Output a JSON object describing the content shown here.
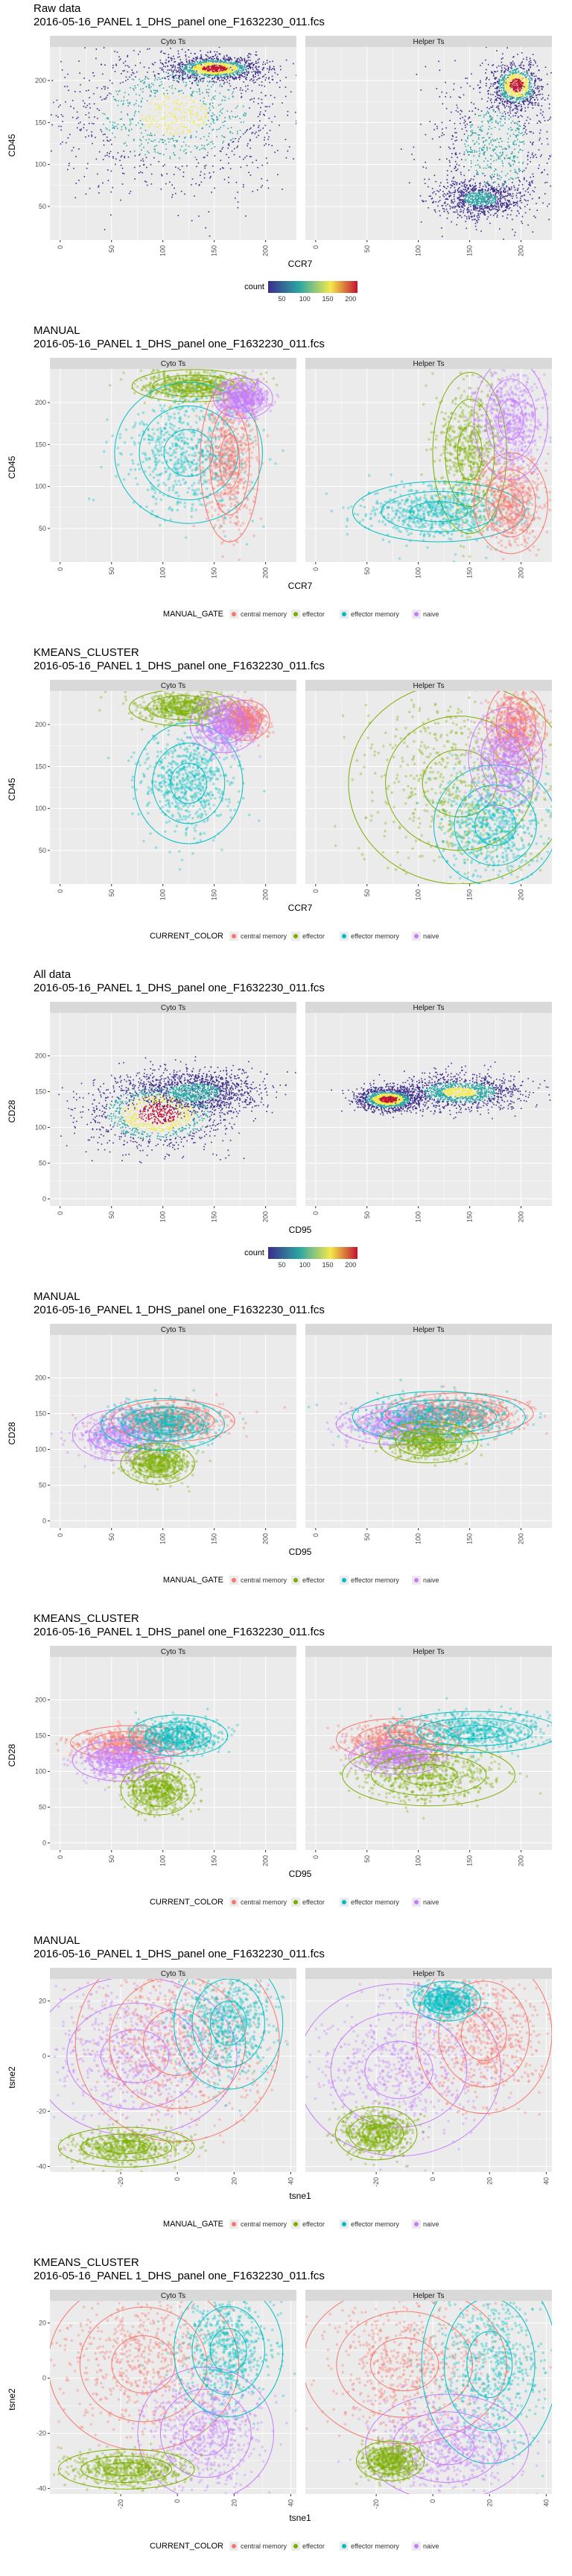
{
  "colors": {
    "central memory": "#F8766D",
    "effector": "#7CAE00",
    "effector memory": "#00BFC4",
    "naive": "#C77CFF",
    "panel_bg": "#EBEBEB",
    "strip_bg": "#D9D9D9",
    "grid": "#FFFFFF",
    "density_low": "#3B2E8C",
    "density_mid": "#2CA6A4",
    "density_hi": "#F4E94B",
    "density_top": "#C4122F"
  },
  "chart_data": [
    {
      "type": "scatter",
      "title": "Raw data",
      "subtitle": "2016-05-16_PANEL 1_DHS_panel one_F1632230_011.fcs",
      "facets": [
        "Cyto Ts",
        "Helper Ts"
      ],
      "xlabel": "CCR7",
      "ylabel": "CD45",
      "xticks": [
        0,
        50,
        100,
        150,
        200
      ],
      "yticks": [
        50,
        100,
        150,
        200
      ],
      "xlim": [
        -10,
        230
      ],
      "ylim": [
        10,
        240
      ],
      "grid": true,
      "legend": {
        "title": "count",
        "kind": "colorbar",
        "ticks": [
          50,
          100,
          150,
          200
        ],
        "position": "bottom"
      },
      "hotspots": [
        [
          {
            "x": 150,
            "y": 215,
            "sx": 22,
            "sy": 7,
            "w": 1.0
          },
          {
            "x": 110,
            "y": 160,
            "sx": 60,
            "sy": 45,
            "w": 0.7
          }
        ],
        [
          {
            "x": 195,
            "y": 195,
            "sx": 12,
            "sy": 14,
            "w": 1.0
          },
          {
            "x": 160,
            "y": 60,
            "sx": 20,
            "sy": 10,
            "w": 0.5
          },
          {
            "x": 175,
            "y": 120,
            "sx": 30,
            "sy": 45,
            "w": 0.6
          }
        ]
      ]
    },
    {
      "type": "scatter",
      "title": "MANUAL",
      "subtitle": "2016-05-16_PANEL 1_DHS_panel one_F1632230_011.fcs",
      "facets": [
        "Cyto Ts",
        "Helper Ts"
      ],
      "xlabel": "CCR7",
      "ylabel": "CD45",
      "xticks": [
        0,
        50,
        100,
        150,
        200
      ],
      "yticks": [
        50,
        100,
        150,
        200
      ],
      "xlim": [
        -10,
        230
      ],
      "ylim": [
        10,
        240
      ],
      "grid": true,
      "legend": {
        "title": "MANUAL_GATE",
        "kind": "categorical",
        "items": [
          "central memory",
          "effector",
          "effector memory",
          "naive"
        ],
        "position": "bottom"
      },
      "clusters": [
        [
          {
            "cls": "effector",
            "x": 130,
            "y": 220,
            "sx": 25,
            "sy": 8
          },
          {
            "cls": "effector memory",
            "x": 125,
            "y": 140,
            "sx": 30,
            "sy": 35
          },
          {
            "cls": "central memory",
            "x": 165,
            "y": 130,
            "sx": 12,
            "sy": 40
          },
          {
            "cls": "naive",
            "x": 178,
            "y": 205,
            "sx": 12,
            "sy": 10
          }
        ],
        [
          {
            "cls": "effector",
            "x": 150,
            "y": 140,
            "sx": 15,
            "sy": 40
          },
          {
            "cls": "effector memory",
            "x": 120,
            "y": 70,
            "sx": 35,
            "sy": 15
          },
          {
            "cls": "central memory",
            "x": 190,
            "y": 80,
            "sx": 15,
            "sy": 25
          },
          {
            "cls": "naive",
            "x": 190,
            "y": 180,
            "sx": 15,
            "sy": 30
          }
        ]
      ]
    },
    {
      "type": "scatter",
      "title": "KMEANS_CLUSTER",
      "subtitle": "2016-05-16_PANEL 1_DHS_panel one_F1632230_011.fcs",
      "facets": [
        "Cyto Ts",
        "Helper Ts"
      ],
      "xlabel": "CCR7",
      "ylabel": "CD45",
      "xticks": [
        0,
        50,
        100,
        150,
        200
      ],
      "yticks": [
        50,
        100,
        150,
        200
      ],
      "xlim": [
        -10,
        230
      ],
      "ylim": [
        10,
        240
      ],
      "grid": true,
      "legend": {
        "title": "CURRENT_COLOR",
        "kind": "categorical",
        "items": [
          "central memory",
          "effector",
          "effector memory",
          "naive"
        ],
        "position": "bottom"
      },
      "clusters": [
        [
          {
            "cls": "effector",
            "x": 120,
            "y": 220,
            "sx": 22,
            "sy": 9
          },
          {
            "cls": "effector memory",
            "x": 125,
            "y": 130,
            "sx": 22,
            "sy": 30
          },
          {
            "cls": "central memory",
            "x": 180,
            "y": 205,
            "sx": 10,
            "sy": 10
          },
          {
            "cls": "naive",
            "x": 160,
            "y": 200,
            "sx": 14,
            "sy": 14
          }
        ],
        [
          {
            "cls": "effector",
            "x": 140,
            "y": 130,
            "sx": 45,
            "sy": 50
          },
          {
            "cls": "effector memory",
            "x": 175,
            "y": 80,
            "sx": 25,
            "sy": 30
          },
          {
            "cls": "central memory",
            "x": 195,
            "y": 200,
            "sx": 12,
            "sy": 20
          },
          {
            "cls": "naive",
            "x": 185,
            "y": 160,
            "sx": 15,
            "sy": 25
          }
        ]
      ]
    },
    {
      "type": "scatter",
      "title": "All data",
      "subtitle": "2016-05-16_PANEL 1_DHS_panel one_F1632230_011.fcs",
      "facets": [
        "Cyto Ts",
        "Helper Ts"
      ],
      "xlabel": "CD95",
      "ylabel": "CD28",
      "xticks": [
        0,
        50,
        100,
        150,
        200
      ],
      "yticks": [
        0,
        50,
        100,
        150,
        200
      ],
      "xlim": [
        -10,
        230
      ],
      "ylim": [
        -10,
        260
      ],
      "grid": true,
      "legend": {
        "title": "count",
        "kind": "colorbar",
        "ticks": [
          50,
          100,
          150,
          200
        ],
        "position": "bottom"
      },
      "hotspots": [
        [
          {
            "x": 95,
            "y": 120,
            "sx": 35,
            "sy": 25,
            "w": 1.0
          },
          {
            "x": 130,
            "y": 150,
            "sx": 30,
            "sy": 15,
            "w": 0.5
          }
        ],
        [
          {
            "x": 70,
            "y": 140,
            "sx": 15,
            "sy": 8,
            "w": 1.0
          },
          {
            "x": 140,
            "y": 150,
            "sx": 30,
            "sy": 12,
            "w": 0.7
          }
        ]
      ]
    },
    {
      "type": "scatter",
      "title": "MANUAL",
      "subtitle": "2016-05-16_PANEL 1_DHS_panel one_F1632230_011.fcs",
      "facets": [
        "Cyto Ts",
        "Helper Ts"
      ],
      "xlabel": "CD95",
      "ylabel": "CD28",
      "xticks": [
        0,
        50,
        100,
        150,
        200
      ],
      "yticks": [
        0,
        50,
        100,
        150,
        200
      ],
      "xlim": [
        -10,
        230
      ],
      "ylim": [
        -10,
        260
      ],
      "grid": true,
      "legend": {
        "title": "MANUAL_GATE",
        "kind": "categorical",
        "items": [
          "central memory",
          "effector",
          "effector memory",
          "naive"
        ],
        "position": "bottom"
      },
      "clusters": [
        [
          {
            "cls": "naive",
            "x": 60,
            "y": 120,
            "sx": 20,
            "sy": 15
          },
          {
            "cls": "effector",
            "x": 95,
            "y": 80,
            "sx": 15,
            "sy": 12
          },
          {
            "cls": "central memory",
            "x": 110,
            "y": 140,
            "sx": 25,
            "sy": 12
          },
          {
            "cls": "effector memory",
            "x": 100,
            "y": 135,
            "sx": 25,
            "sy": 15
          }
        ],
        [
          {
            "cls": "naive",
            "x": 80,
            "y": 135,
            "sx": 25,
            "sy": 12
          },
          {
            "cls": "central memory",
            "x": 140,
            "y": 150,
            "sx": 30,
            "sy": 12
          },
          {
            "cls": "effector memory",
            "x": 120,
            "y": 145,
            "sx": 35,
            "sy": 15
          },
          {
            "cls": "effector",
            "x": 110,
            "y": 110,
            "sx": 20,
            "sy": 12
          }
        ]
      ]
    },
    {
      "type": "scatter",
      "title": "KMEANS_CLUSTER",
      "subtitle": "2016-05-16_PANEL 1_DHS_panel one_F1632230_011.fcs",
      "facets": [
        "Cyto Ts",
        "Helper Ts"
      ],
      "xlabel": "CD95",
      "ylabel": "CD28",
      "xticks": [
        0,
        50,
        100,
        150,
        200
      ],
      "yticks": [
        0,
        50,
        100,
        150,
        200
      ],
      "xlim": [
        -10,
        230
      ],
      "ylim": [
        -10,
        260
      ],
      "grid": true,
      "legend": {
        "title": "CURRENT_COLOR",
        "kind": "categorical",
        "items": [
          "central memory",
          "effector",
          "effector memory",
          "naive"
        ],
        "position": "bottom"
      },
      "clusters": [
        [
          {
            "cls": "central memory",
            "x": 70,
            "y": 140,
            "sx": 25,
            "sy": 10
          },
          {
            "cls": "naive",
            "x": 60,
            "y": 115,
            "sx": 20,
            "sy": 12
          },
          {
            "cls": "effector",
            "x": 95,
            "y": 75,
            "sx": 15,
            "sy": 15
          },
          {
            "cls": "effector memory",
            "x": 115,
            "y": 150,
            "sx": 20,
            "sy": 12
          }
        ],
        [
          {
            "cls": "central memory",
            "x": 80,
            "y": 145,
            "sx": 25,
            "sy": 12
          },
          {
            "cls": "naive",
            "x": 80,
            "y": 120,
            "sx": 20,
            "sy": 10
          },
          {
            "cls": "effector",
            "x": 110,
            "y": 95,
            "sx": 35,
            "sy": 18
          },
          {
            "cls": "effector memory",
            "x": 155,
            "y": 155,
            "sx": 35,
            "sy": 12
          }
        ]
      ]
    },
    {
      "type": "scatter",
      "title": "MANUAL",
      "subtitle": "2016-05-16_PANEL 1_DHS_panel one_F1632230_011.fcs",
      "facets": [
        "Cyto Ts",
        "Helper Ts"
      ],
      "xlabel": "tsne1",
      "ylabel": "tsne2",
      "xticks": [
        -20,
        0,
        20,
        40
      ],
      "yticks": [
        -40,
        -20,
        0,
        20
      ],
      "xlim": [
        -45,
        42
      ],
      "ylim": [
        -42,
        28
      ],
      "grid": true,
      "legend": {
        "title": "MANUAL_GATE",
        "kind": "categorical",
        "items": [
          "central memory",
          "effector",
          "effector memory",
          "naive"
        ],
        "position": "bottom"
      },
      "clusters": [
        [
          {
            "cls": "naive",
            "x": -15,
            "y": 0,
            "sx": 15,
            "sy": 12
          },
          {
            "cls": "central memory",
            "x": 0,
            "y": 5,
            "sx": 15,
            "sy": 15
          },
          {
            "cls": "effector",
            "x": -18,
            "y": -33,
            "sx": 10,
            "sy": 3
          },
          {
            "cls": "effector memory",
            "x": 18,
            "y": 12,
            "sx": 8,
            "sy": 10
          }
        ],
        [
          {
            "cls": "naive",
            "x": -12,
            "y": -5,
            "sx": 15,
            "sy": 13
          },
          {
            "cls": "central memory",
            "x": 18,
            "y": 8,
            "sx": 10,
            "sy": 12
          },
          {
            "cls": "effector",
            "x": -20,
            "y": -28,
            "sx": 6,
            "sy": 4
          },
          {
            "cls": "effector memory",
            "x": 5,
            "y": 20,
            "sx": 5,
            "sy": 3
          }
        ]
      ]
    },
    {
      "type": "scatter",
      "title": "KMEANS_CLUSTER",
      "subtitle": "2016-05-16_PANEL 1_DHS_panel one_F1632230_011.fcs",
      "facets": [
        "Cyto Ts",
        "Helper Ts"
      ],
      "xlabel": "tsne1",
      "ylabel": "tsne2",
      "xticks": [
        -20,
        0,
        20,
        40
      ],
      "yticks": [
        -40,
        -20,
        0,
        20
      ],
      "xlim": [
        -45,
        42
      ],
      "ylim": [
        -42,
        28
      ],
      "grid": true,
      "legend": {
        "title": "CURRENT_COLOR",
        "kind": "categorical",
        "items": [
          "central memory",
          "effector",
          "effector memory",
          "naive"
        ],
        "position": "bottom"
      },
      "clusters": [
        [
          {
            "cls": "central memory",
            "x": -12,
            "y": 5,
            "sx": 14,
            "sy": 13
          },
          {
            "cls": "naive",
            "x": 10,
            "y": -20,
            "sx": 10,
            "sy": 10
          },
          {
            "cls": "effector",
            "x": -18,
            "y": -33,
            "sx": 10,
            "sy": 3
          },
          {
            "cls": "effector memory",
            "x": 18,
            "y": 10,
            "sx": 8,
            "sy": 10
          }
        ],
        [
          {
            "cls": "central memory",
            "x": -10,
            "y": 5,
            "sx": 15,
            "sy": 12
          },
          {
            "cls": "effector memory",
            "x": 20,
            "y": 5,
            "sx": 10,
            "sy": 15
          },
          {
            "cls": "naive",
            "x": 5,
            "y": -25,
            "sx": 12,
            "sy": 8
          },
          {
            "cls": "effector",
            "x": -15,
            "y": -30,
            "sx": 5,
            "sy": 3
          }
        ]
      ]
    }
  ]
}
